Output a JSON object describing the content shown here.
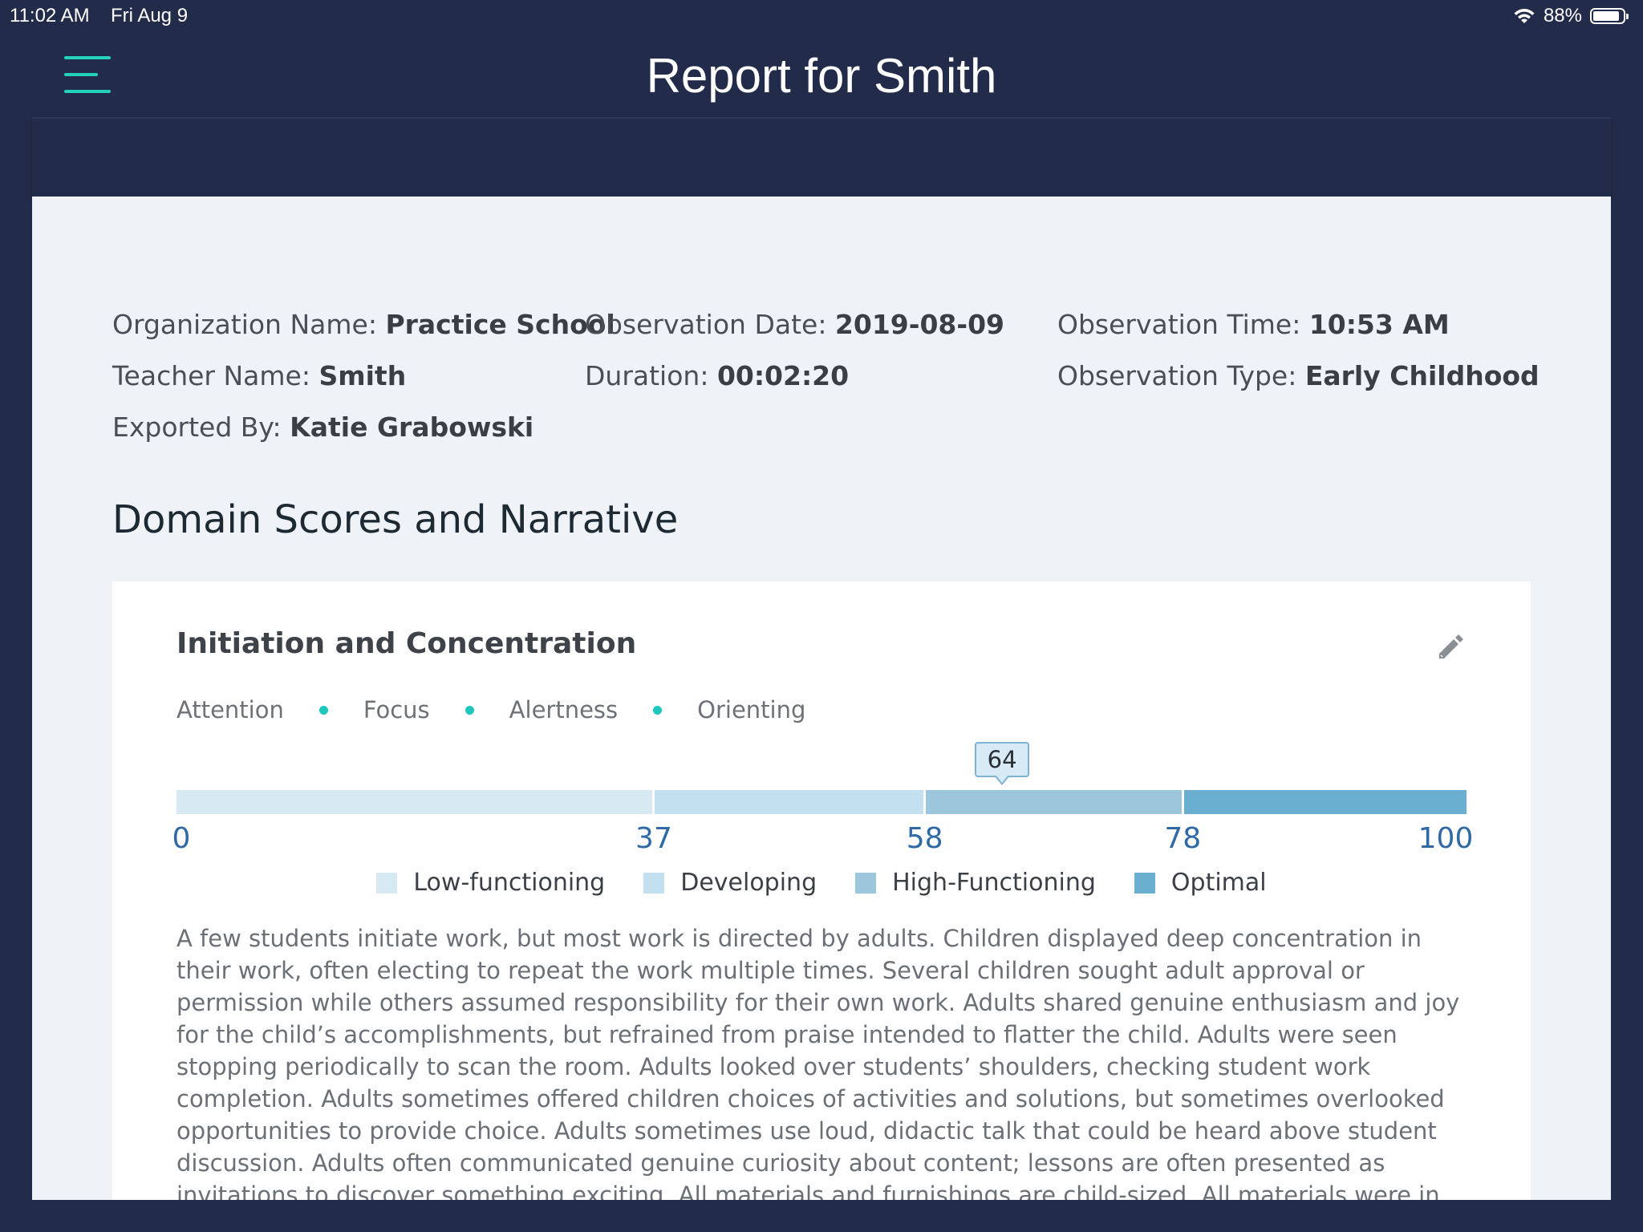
{
  "status_bar": {
    "time": "11:02 AM",
    "date": "Fri Aug 9",
    "battery_percent_label": "88%",
    "battery_level": 0.88
  },
  "header": {
    "title": "Report for Smith",
    "menu_icon": "hamburger-menu-icon",
    "accent_color": "#22d3b8",
    "background_color": "#232b4b"
  },
  "meta": {
    "organization_label": "Organization Name: ",
    "organization_value": "Practice School",
    "observation_date_label": "Observation Date: ",
    "observation_date_value": "2019-08-09",
    "observation_time_label": "Observation Time: ",
    "observation_time_value": "10:53 AM",
    "teacher_label": "Teacher Name: ",
    "teacher_value": "Smith",
    "duration_label": "Duration: ",
    "duration_value": "00:02:20",
    "observation_type_label": "Observation Type: ",
    "observation_type_value": "Early Childhood",
    "exported_by_label": "Exported By: ",
    "exported_by_value": "Katie Grabowski"
  },
  "section": {
    "title": "Domain Scores and Narrative"
  },
  "domain_card": {
    "title": "Initiation and Concentration",
    "edit_icon": "pencil-icon",
    "subdomains": [
      "Attention",
      "Focus",
      "Alertness",
      "Orienting"
    ],
    "score": 64,
    "score_label": "64",
    "scale": {
      "min": 0,
      "max": 100,
      "ticks": [
        0,
        37,
        58,
        78,
        100
      ],
      "tick_labels": [
        "0",
        "37",
        "58",
        "78",
        "100"
      ]
    },
    "bands": [
      {
        "name": "Low-functioning",
        "from": 0,
        "to": 37,
        "color": "#d7eaf4"
      },
      {
        "name": "Developing",
        "from": 37,
        "to": 58,
        "color": "#c2e0f0"
      },
      {
        "name": "High-Functioning",
        "from": 58,
        "to": 78,
        "color": "#9cc6dc"
      },
      {
        "name": "Optimal",
        "from": 78,
        "to": 100,
        "color": "#6aaed0"
      }
    ],
    "narrative": "A few students initiate work, but most work is directed by adults. Children displayed deep concentration in their work, often electing to repeat the work multiple times. Several children sought adult approval or permission while others assumed responsibility for their own work. Adults shared genuine enthusiasm and joy for the child’s accomplishments, but refrained from praise intended to flatter the child. Adults were seen stopping periodically to scan the room. Adults looked over students’ shoulders, checking student work completion. Adults sometimes offered children choices of activities and solutions, but sometimes overlooked opportunities to provide choice. Adults sometimes use loud, didactic talk that could be heard above student discussion. Adults often communicated genuine curiosity about content; lessons are often presented as invitations to discover something exciting. All materials and furnishings are child-sized. All materials were in good repair and ready for children’s use. Children have access to all areas of the environment at all times and choose their"
  }
}
